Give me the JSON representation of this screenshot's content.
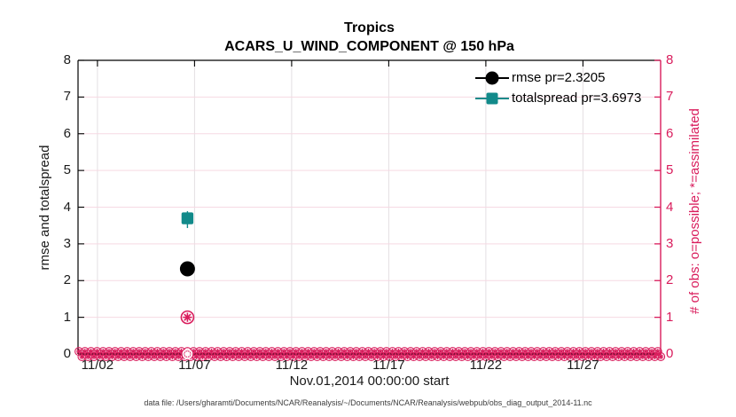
{
  "titles": {
    "line1": "Tropics",
    "line2": "ACARS_U_WIND_COMPONENT @ 150 hPa"
  },
  "axes": {
    "left": {
      "label": "rmse and totalspread",
      "ticks": [
        "0",
        "1",
        "2",
        "3",
        "4",
        "5",
        "6",
        "7",
        "8"
      ],
      "color": "#000000"
    },
    "right": {
      "label": "# of obs: o=possible; *=assimilated",
      "ticks": [
        "0",
        "1",
        "2",
        "3",
        "4",
        "5",
        "6",
        "7",
        "8"
      ],
      "color": "#d91c5c"
    },
    "x": {
      "label": "Nov.01,2014 00:00:00 start",
      "tick_labels": [
        "11/02",
        "11/07",
        "11/12",
        "11/17",
        "11/22",
        "11/27"
      ],
      "tick_days": [
        2,
        7,
        12,
        17,
        22,
        27
      ],
      "range_days": [
        1,
        31
      ]
    }
  },
  "legend": [
    {
      "label": "rmse pr=2.3205",
      "color": "#000000",
      "marker": "filled-circle"
    },
    {
      "label": "totalspread pr=3.6973",
      "color": "#128a8a",
      "marker": "filled-square"
    }
  ],
  "chart_data": {
    "type": "line",
    "title": "Tropics",
    "subtitle": "ACARS_U_WIND_COMPONENT @ 150 hPa",
    "xlabel": "Nov.01,2014 00:00:00 start",
    "ylabel_left": "rmse and totalspread",
    "ylabel_right": "# of obs: o=possible; *=assimilated",
    "ylim": [
      0,
      8
    ],
    "x_tick_labels": [
      "11/02",
      "11/07",
      "11/12",
      "11/17",
      "11/22",
      "11/27"
    ],
    "grid": true,
    "legend_position": "upper-right-inside",
    "series": [
      {
        "name": "rmse pr=2.3205",
        "marker": "filled-circle",
        "color": "#000000",
        "points": [
          {
            "date": "11/07",
            "day": 7,
            "value": 2.3205
          }
        ]
      },
      {
        "name": "totalspread pr=3.6973",
        "marker": "filled-square",
        "color": "#128a8a",
        "points": [
          {
            "date": "11/07",
            "day": 7,
            "value": 3.6973
          }
        ]
      }
    ],
    "obs_counts": {
      "marker": "circle-star",
      "color": "#d91c5c",
      "points": [
        {
          "date": "11/07",
          "day": 7,
          "possible": 1,
          "assimilated": 1
        }
      ],
      "zero_line_band": "dense overlapping o=possible and *=assimilated markers at y=0 across all November dates"
    }
  },
  "colors": {
    "accent_pink": "#d91c5c",
    "teal": "#128a8a",
    "black": "#000000",
    "grid_horizontal": "#f6d9e3",
    "grid_vertical": "#e3dfe2"
  },
  "caption": "data file: /Users/gharamti/Documents/NCAR/Reanalysis/~/Documents/NCAR/Reanalysis/webpub/obs_diag_output_2014-11.nc"
}
